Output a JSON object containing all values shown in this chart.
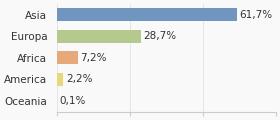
{
  "categories": [
    "Asia",
    "Europa",
    "Africa",
    "America",
    "Oceania"
  ],
  "values": [
    61.7,
    28.7,
    7.2,
    2.2,
    0.1
  ],
  "labels": [
    "61,7%",
    "28,7%",
    "7,2%",
    "2,2%",
    "0,1%"
  ],
  "bar_colors": [
    "#7096c0",
    "#b5c98e",
    "#e8a97a",
    "#e8d87a",
    "#f0c8a0"
  ],
  "background_color": "#f9f9f9",
  "xlim": [
    0,
    75
  ],
  "label_fontsize": 7.5,
  "tick_fontsize": 7.5
}
